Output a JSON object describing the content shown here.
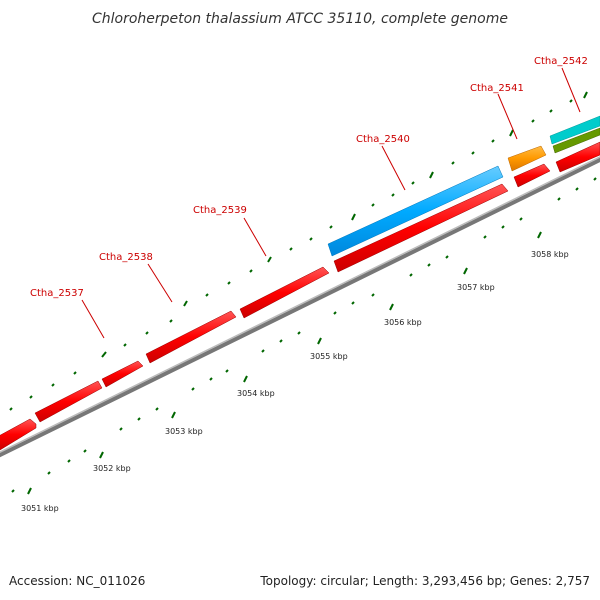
{
  "title": "Chloroherpeton thalassium ATCC 35110, complete genome",
  "footer": {
    "accession": "Accession: NC_011026",
    "stats": "Topology: circular; Length: 3,293,456 bp; Genes: 2,757"
  },
  "colors": {
    "gene_red": "#ff0000",
    "gene_blue": "#00aaff",
    "gene_orange": "#ff9900",
    "gene_cyan": "#00cccc",
    "gene_olive": "#669900",
    "backbone": "#888888",
    "tick": "#006600",
    "label": "#cc0000"
  },
  "genes": [
    {
      "id": "Ctha_2537",
      "label": "Ctha_2537"
    },
    {
      "id": "Ctha_2538",
      "label": "Ctha_2538"
    },
    {
      "id": "Ctha_2539",
      "label": "Ctha_2539"
    },
    {
      "id": "Ctha_2540",
      "label": "Ctha_2540"
    },
    {
      "id": "Ctha_2541",
      "label": "Ctha_2541"
    },
    {
      "id": "Ctha_2542",
      "label": "Ctha_2542"
    }
  ],
  "kbp_ticks": [
    "3051 kbp",
    "3052 kbp",
    "3053 kbp",
    "3054 kbp",
    "3055 kbp",
    "3056 kbp",
    "3057 kbp",
    "3058 kbp"
  ]
}
